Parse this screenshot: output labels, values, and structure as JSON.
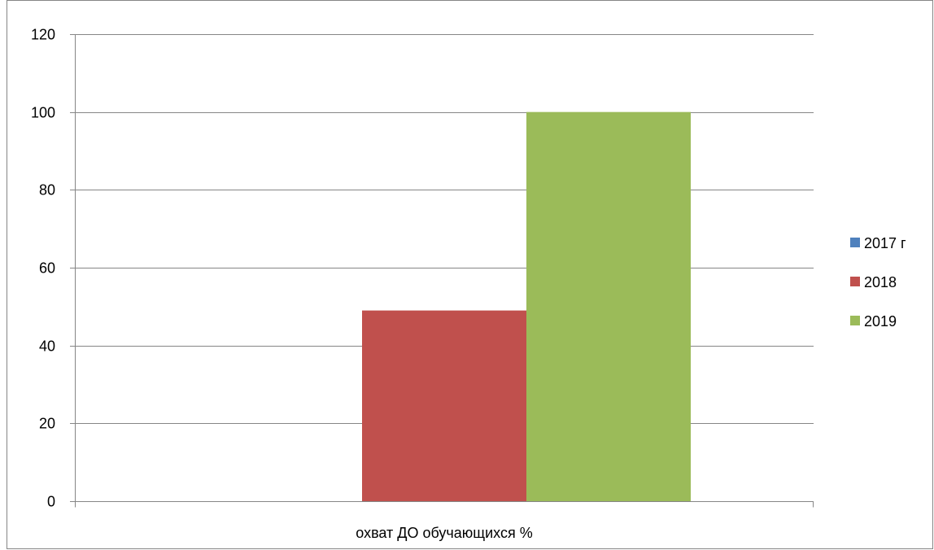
{
  "chart_data": {
    "type": "bar",
    "categories": [
      "охват ДО обучающихся %"
    ],
    "series": [
      {
        "name": "2017 г",
        "values": [
          0
        ],
        "color": "#4f81bd"
      },
      {
        "name": "2018",
        "values": [
          49
        ],
        "color": "#c0504d"
      },
      {
        "name": "2019",
        "values": [
          100
        ],
        "color": "#9bbb59"
      }
    ],
    "ylim": [
      0,
      120
    ],
    "yticks": [
      0,
      20,
      40,
      60,
      80,
      100,
      120
    ],
    "xlabel": "",
    "ylabel": "",
    "grid": true,
    "legend_position": "right"
  }
}
